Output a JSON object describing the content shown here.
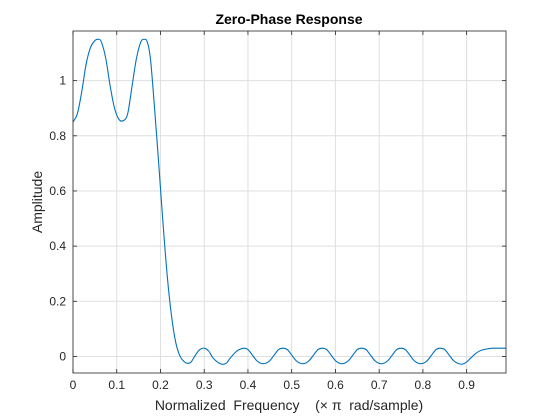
{
  "chart_data": {
    "type": "line",
    "title": "Zero-Phase Response",
    "xlabel": "Normalized  Frequency    (× π  rad/sample)",
    "ylabel": "Amplitude",
    "xlim": [
      0,
      0.99
    ],
    "ylim": [
      -0.06,
      1.18
    ],
    "x_ticks": [
      0,
      0.1,
      0.2,
      0.3,
      0.4,
      0.5,
      0.6,
      0.7,
      0.8,
      0.9
    ],
    "x_tick_labels": [
      "0",
      "0.1",
      "0.2",
      "0.3",
      "0.4",
      "0.5",
      "0.6",
      "0.7",
      "0.8",
      "0.9"
    ],
    "y_ticks": [
      0,
      0.2,
      0.4,
      0.6,
      0.8,
      1
    ],
    "y_tick_labels": [
      "0",
      "0.2",
      "0.4",
      "0.6",
      "0.8",
      "1"
    ],
    "grid": true,
    "series": [
      {
        "color": "#0072BD",
        "x": [
          0,
          0.01,
          0.02,
          0.03,
          0.04,
          0.05,
          0.058,
          0.065,
          0.075,
          0.085,
          0.095,
          0.105,
          0.115,
          0.125,
          0.135,
          0.145,
          0.155,
          0.163,
          0.17,
          0.177,
          0.185,
          0.195,
          0.205,
          0.215,
          0.225,
          0.235,
          0.245,
          0.255,
          0.262,
          0.27,
          0.28,
          0.29,
          0.3,
          0.31,
          0.32,
          0.33,
          0.34,
          0.35,
          0.36,
          0.375,
          0.39,
          0.4,
          0.41,
          0.42,
          0.43,
          0.44,
          0.45,
          0.46,
          0.47,
          0.48,
          0.49,
          0.5,
          0.51,
          0.52,
          0.53,
          0.54,
          0.55,
          0.56,
          0.57,
          0.58,
          0.59,
          0.6,
          0.61,
          0.62,
          0.63,
          0.64,
          0.65,
          0.66,
          0.67,
          0.68,
          0.69,
          0.7,
          0.71,
          0.72,
          0.73,
          0.74,
          0.75,
          0.76,
          0.77,
          0.78,
          0.79,
          0.8,
          0.81,
          0.82,
          0.83,
          0.84,
          0.85,
          0.86,
          0.87,
          0.88,
          0.89,
          0.9,
          0.91,
          0.92,
          0.93,
          0.94,
          0.95,
          0.96,
          0.97,
          0.98,
          0.99
        ],
        "y": [
          0.85,
          0.88,
          0.96,
          1.06,
          1.12,
          1.145,
          1.15,
          1.14,
          1.08,
          0.98,
          0.9,
          0.86,
          0.855,
          0.88,
          0.98,
          1.08,
          1.14,
          1.15,
          1.14,
          1.08,
          0.93,
          0.72,
          0.5,
          0.3,
          0.15,
          0.05,
          0.0,
          -0.02,
          -0.025,
          -0.02,
          0.005,
          0.025,
          0.03,
          0.02,
          -0.005,
          -0.02,
          -0.028,
          -0.025,
          -0.005,
          0.02,
          0.03,
          0.025,
          0.005,
          -0.015,
          -0.025,
          -0.025,
          -0.015,
          0.005,
          0.025,
          0.03,
          0.025,
          0.005,
          -0.015,
          -0.025,
          -0.025,
          -0.015,
          0.005,
          0.025,
          0.03,
          0.025,
          0.005,
          -0.015,
          -0.025,
          -0.025,
          -0.015,
          0.005,
          0.025,
          0.03,
          0.025,
          0.005,
          -0.015,
          -0.025,
          -0.025,
          -0.015,
          0.005,
          0.025,
          0.03,
          0.025,
          0.005,
          -0.015,
          -0.025,
          -0.025,
          -0.015,
          0.005,
          0.025,
          0.03,
          0.025,
          0.005,
          -0.015,
          -0.025,
          -0.028,
          -0.02,
          -0.005,
          0.01,
          0.02,
          0.025,
          0.028,
          0.03,
          0.03,
          0.03,
          0.03
        ]
      }
    ]
  }
}
